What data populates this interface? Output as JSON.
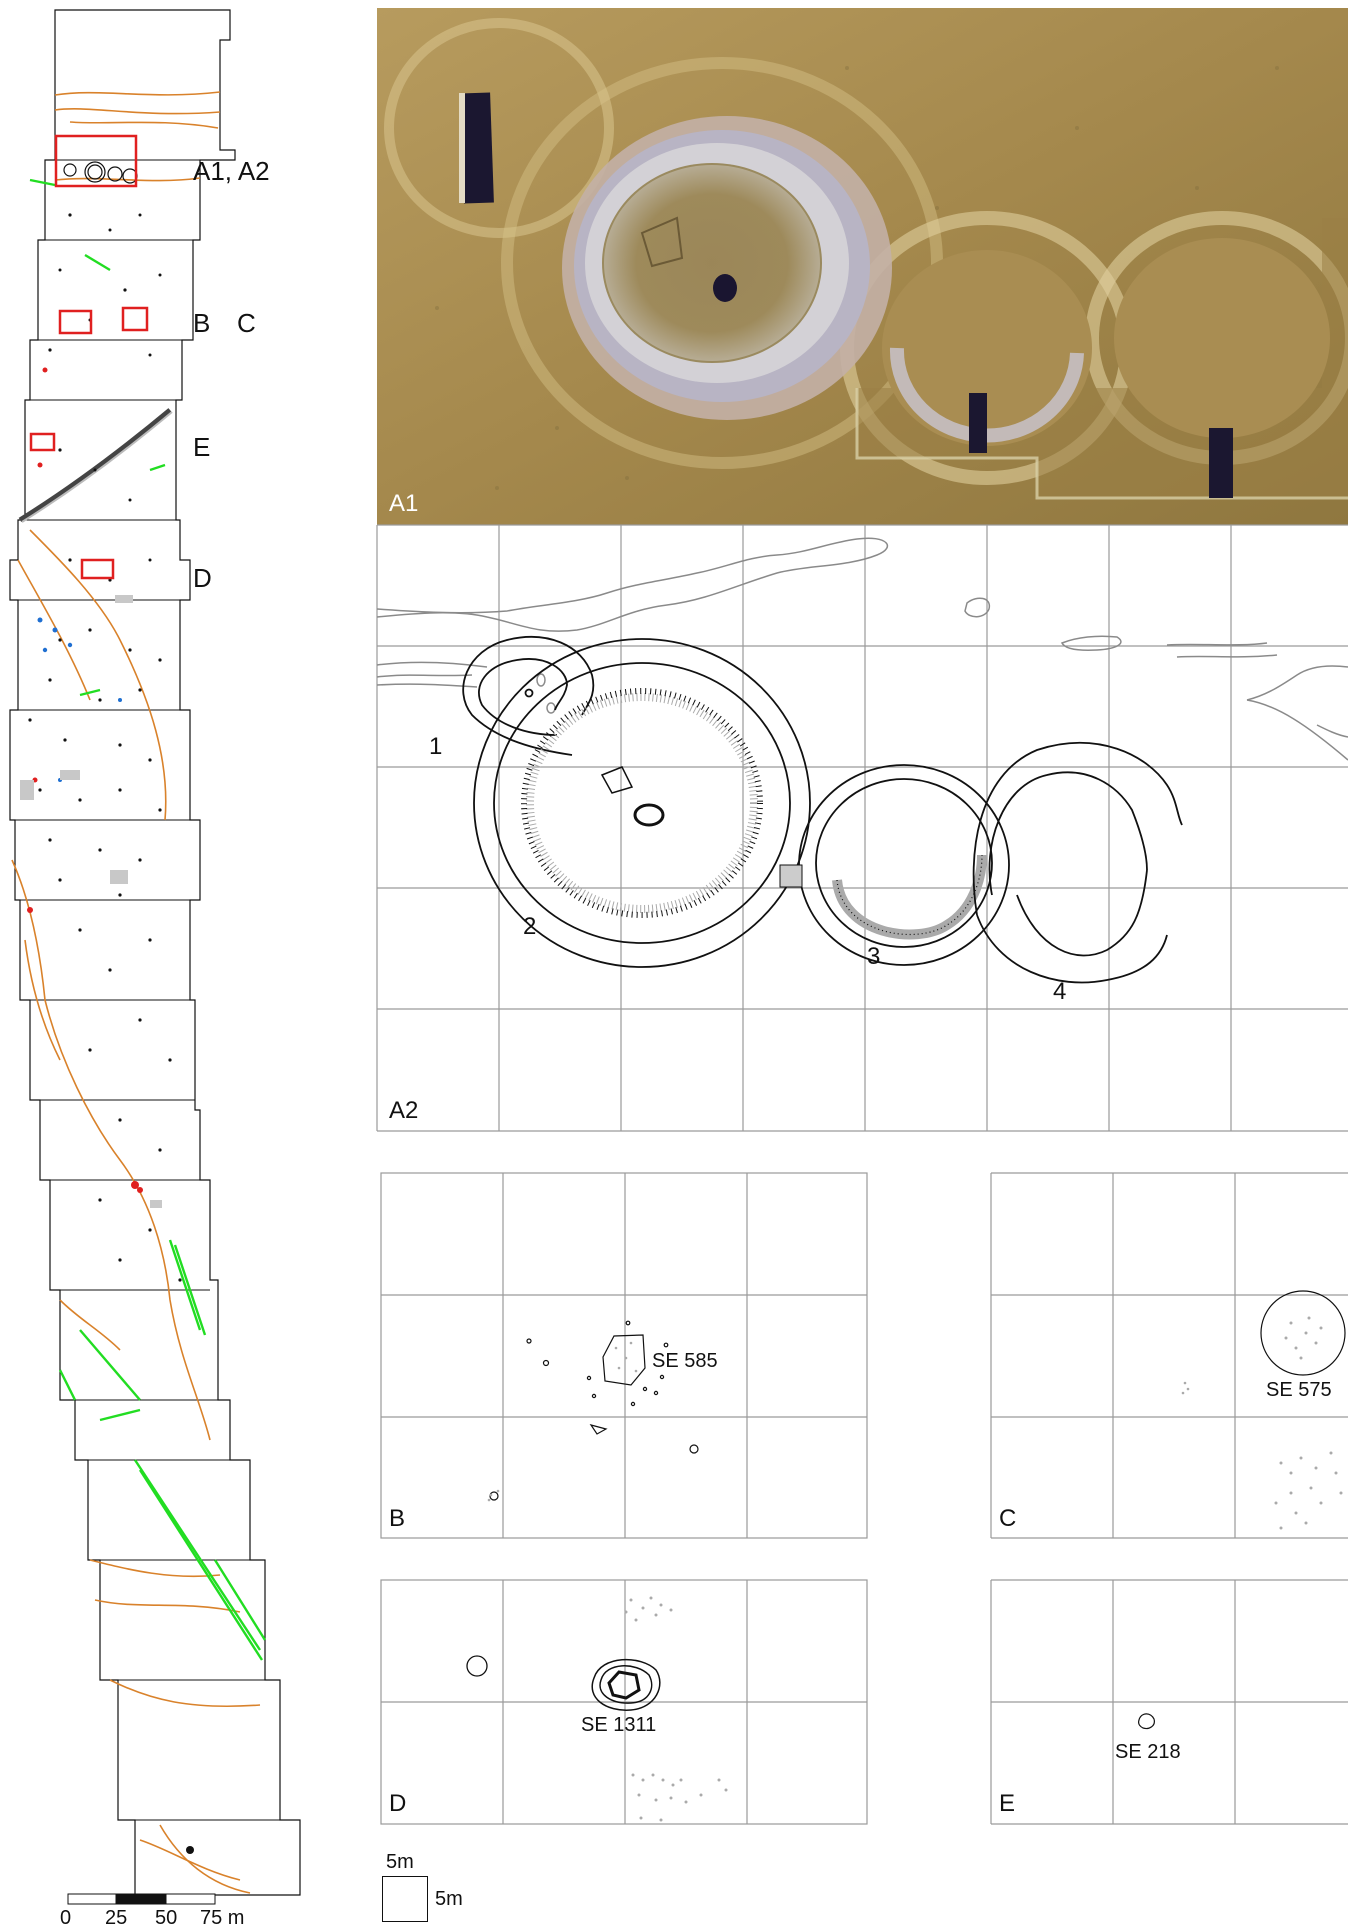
{
  "overview": {
    "labels": {
      "a": "A1, A2",
      "b": "B",
      "c": "C",
      "e": "E",
      "d": "D"
    }
  },
  "photo": {
    "label": "A1"
  },
  "plan_a2": {
    "label": "A2",
    "features": [
      "1",
      "2",
      "3",
      "4"
    ]
  },
  "panel_b": {
    "label": "B",
    "feature": "SE 585"
  },
  "panel_c": {
    "label": "C",
    "feature": "SE 575"
  },
  "panel_d": {
    "label": "D",
    "feature": "SE 1311"
  },
  "panel_e": {
    "label": "E",
    "feature": "SE 218"
  },
  "grid_legend": {
    "top": "5m",
    "side": "5m"
  },
  "scale_bar": {
    "ticks": [
      "0",
      "25",
      "50",
      "75 m"
    ]
  },
  "colors": {
    "grid": "#9a9a9a",
    "highlight": "#e02020",
    "paleochannel": "#d9822b",
    "linear": "#22dd22",
    "soil": "#b5a064"
  }
}
